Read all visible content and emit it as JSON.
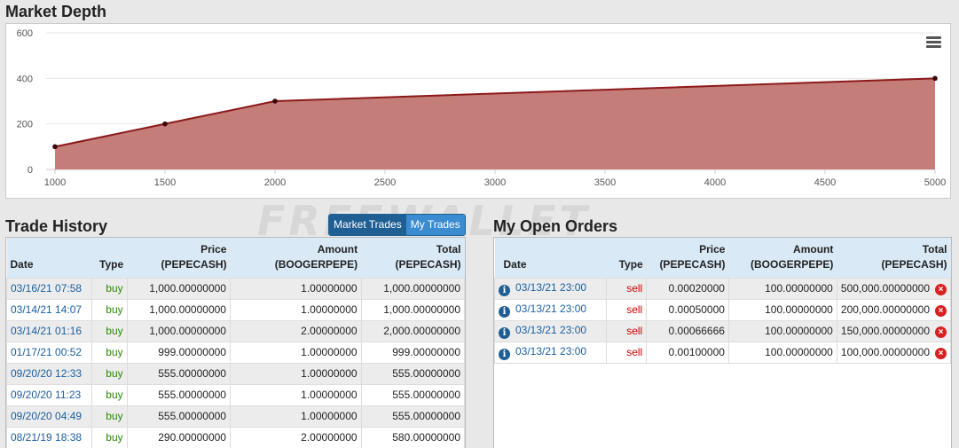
{
  "depth": {
    "title": "Market Depth"
  },
  "chart_data": {
    "type": "area",
    "x": [
      1000,
      1500,
      2000,
      5000
    ],
    "y": [
      100,
      200,
      300,
      400
    ],
    "xticks": [
      "1000",
      "1500",
      "2000",
      "2500",
      "3000",
      "3500",
      "4000",
      "4500",
      "5000"
    ],
    "yticks": [
      "0",
      "200",
      "400",
      "600"
    ],
    "xlim": [
      1000,
      5000
    ],
    "ylim": [
      0,
      600
    ],
    "fill_color": "#c47d78",
    "line_color": "#8b1a1a",
    "grid": true
  },
  "history": {
    "title": "Trade History",
    "toggle_market": "Market Trades",
    "toggle_my": "My Trades",
    "headers": {
      "date": "Date",
      "type": "Type",
      "price_1": "Price",
      "price_2": "(PEPECASH)",
      "amount_1": "Amount",
      "amount_2": "(BOOGERPEPE)",
      "total_1": "Total",
      "total_2": "(PEPECASH)"
    },
    "rows": [
      {
        "date": "03/16/21 07:58",
        "type": "buy",
        "price": "1,000.00000000",
        "amount": "1.00000000",
        "total": "1,000.00000000"
      },
      {
        "date": "03/14/21 14:07",
        "type": "buy",
        "price": "1,000.00000000",
        "amount": "1.00000000",
        "total": "1,000.00000000"
      },
      {
        "date": "03/14/21 01:16",
        "type": "buy",
        "price": "1,000.00000000",
        "amount": "2.00000000",
        "total": "2,000.00000000"
      },
      {
        "date": "01/17/21 00:52",
        "type": "buy",
        "price": "999.00000000",
        "amount": "1.00000000",
        "total": "999.00000000"
      },
      {
        "date": "09/20/20 12:33",
        "type": "buy",
        "price": "555.00000000",
        "amount": "1.00000000",
        "total": "555.00000000"
      },
      {
        "date": "09/20/20 11:23",
        "type": "buy",
        "price": "555.00000000",
        "amount": "1.00000000",
        "total": "555.00000000"
      },
      {
        "date": "09/20/20 04:49",
        "type": "buy",
        "price": "555.00000000",
        "amount": "1.00000000",
        "total": "555.00000000"
      },
      {
        "date": "08/21/19 18:38",
        "type": "buy",
        "price": "290.00000000",
        "amount": "2.00000000",
        "total": "580.00000000"
      }
    ]
  },
  "orders": {
    "title": "My Open Orders",
    "headers": {
      "date": "Date",
      "type": "Type",
      "price_1": "Price",
      "price_2": "(PEPECASH)",
      "amount_1": "Amount",
      "amount_2": "(BOOGERPEPE)",
      "total_1": "Total",
      "total_2": "(PEPECASH)"
    },
    "rows": [
      {
        "date": "03/13/21 23:00",
        "type": "sell",
        "price": "0.00020000",
        "amount": "100.00000000",
        "total": "500,000.00000000"
      },
      {
        "date": "03/13/21 23:00",
        "type": "sell",
        "price": "0.00050000",
        "amount": "100.00000000",
        "total": "200,000.00000000"
      },
      {
        "date": "03/13/21 23:00",
        "type": "sell",
        "price": "0.00066666",
        "amount": "100.00000000",
        "total": "150,000.00000000"
      },
      {
        "date": "03/13/21 23:00",
        "type": "sell",
        "price": "0.00100000",
        "amount": "100.00000000",
        "total": "100,000.00000000"
      }
    ]
  }
}
